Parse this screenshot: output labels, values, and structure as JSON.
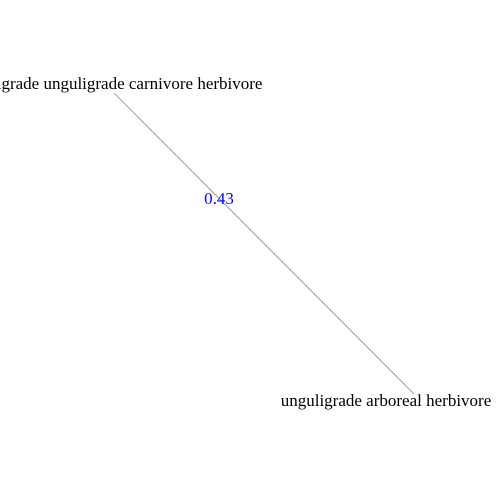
{
  "graph": {
    "nodes": [
      {
        "id": "n1",
        "label": "digitigrade unguligrade carnivore herbivore"
      },
      {
        "id": "n2",
        "label": "unguligrade arboreal herbivore"
      }
    ],
    "edges": [
      {
        "from": "n1",
        "to": "n2",
        "weight_label": "0.43"
      }
    ],
    "colors": {
      "edge": "#aaaaaa",
      "edge_label": "#0000ff",
      "node_label": "#000000",
      "background": "#ffffff"
    }
  }
}
